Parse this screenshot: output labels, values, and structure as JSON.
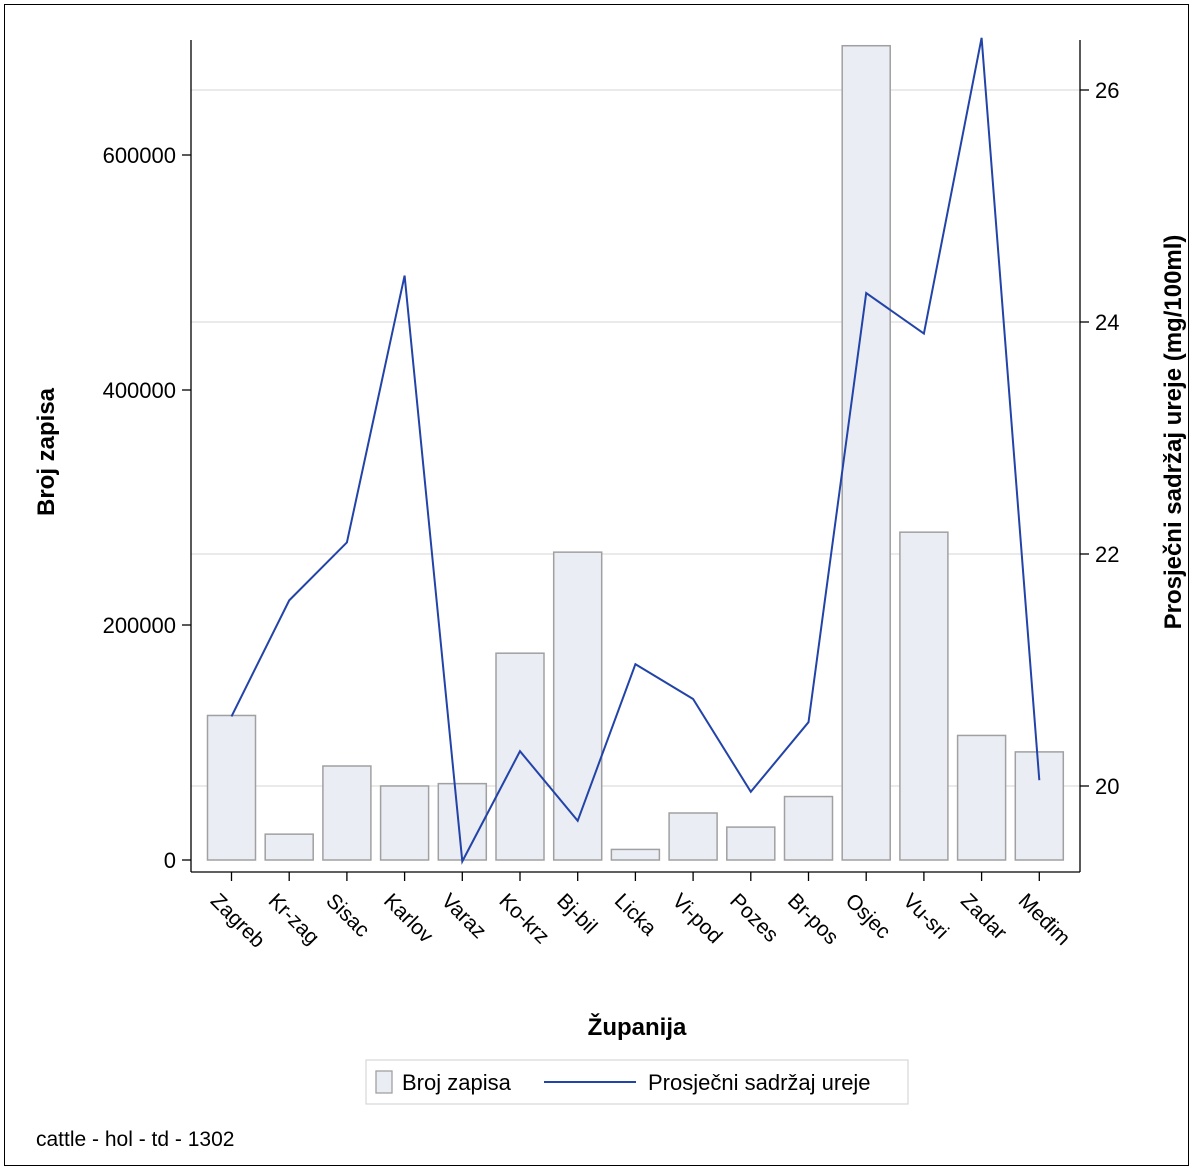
{
  "chart_data": {
    "type": "bar",
    "title": "",
    "xlabel": "Županija",
    "ylabel": "Broj zapisa",
    "y2label": "Prosječni sadržaj ureje (mg/100ml)",
    "categories": [
      "Zagreb",
      "Kr-zag",
      "Sisac",
      "Karlov",
      "Varaz",
      "Ko-krz",
      "Bj-bil",
      "Licka",
      "Vi-pod",
      "Pozes",
      "Br-pos",
      "Osjec",
      "Vu-sri",
      "Zadar",
      "Međim"
    ],
    "series": [
      {
        "name": "Broj zapisa",
        "type": "bar",
        "axis": "left",
        "values": [
          123000,
          22000,
          80000,
          63000,
          65000,
          176000,
          262000,
          9000,
          40000,
          28000,
          54000,
          693000,
          279000,
          106000,
          92000
        ]
      },
      {
        "name": "Prosječni sadržaj ureje",
        "type": "line",
        "axis": "right",
        "values": [
          20.6,
          21.6,
          22.1,
          24.4,
          19.35,
          20.3,
          19.7,
          21.05,
          20.75,
          19.95,
          20.55,
          24.25,
          23.9,
          26.45,
          20.05
        ]
      }
    ],
    "ylim": [
      0,
      700000
    ],
    "y2lim": [
      19.35,
      26.5
    ],
    "yticks": [
      "0",
      "200000",
      "400000",
      "600000"
    ],
    "y2ticks": [
      "20",
      "22",
      "24",
      "26"
    ],
    "grid": true,
    "legend_position": "bottom",
    "colors": {
      "bar_fill": "#eaedf3",
      "bar_stroke": "#a0a0a0",
      "line": "#2243a8",
      "grid": "#e3e3e3"
    }
  },
  "footnote": "cattle - hol - td - 1302"
}
